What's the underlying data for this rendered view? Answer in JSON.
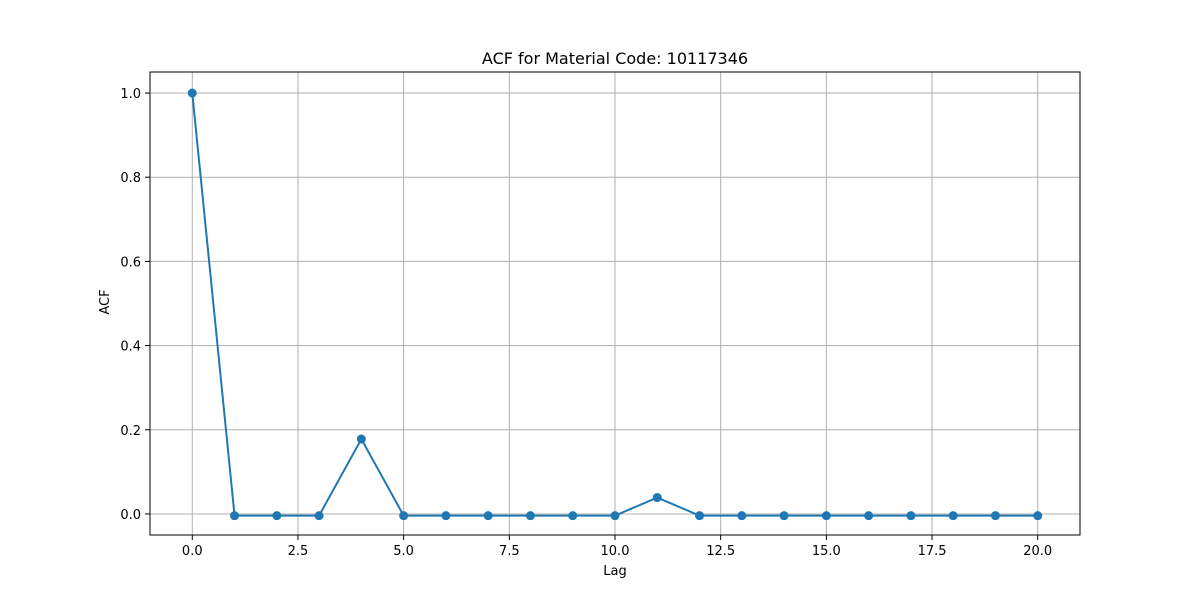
{
  "chart_data": {
    "type": "line",
    "title": "ACF for Material Code: 10117346",
    "xlabel": "Lag",
    "ylabel": "ACF",
    "x": [
      0,
      1,
      2,
      3,
      4,
      5,
      6,
      7,
      8,
      9,
      10,
      11,
      12,
      13,
      14,
      15,
      16,
      17,
      18,
      19,
      20
    ],
    "series": [
      {
        "values": [
          1.0,
          -0.004,
          -0.004,
          -0.004,
          0.178,
          -0.004,
          -0.004,
          -0.004,
          -0.004,
          -0.004,
          -0.004,
          0.039,
          -0.004,
          -0.004,
          -0.004,
          -0.004,
          -0.004,
          -0.004,
          -0.004,
          -0.004,
          -0.004
        ],
        "color": "#1f77b4",
        "marker": "circle"
      }
    ],
    "xlim": [
      -1.0,
      21.0
    ],
    "ylim": [
      -0.05,
      1.05
    ],
    "xticks": [
      0.0,
      2.5,
      5.0,
      7.5,
      10.0,
      12.5,
      15.0,
      17.5,
      20.0
    ],
    "xtick_labels": [
      "0.0",
      "2.5",
      "5.0",
      "7.5",
      "10.0",
      "12.5",
      "15.0",
      "17.5",
      "20.0"
    ],
    "yticks": [
      0.0,
      0.2,
      0.4,
      0.6,
      0.8,
      1.0
    ],
    "ytick_labels": [
      "0.0",
      "0.2",
      "0.4",
      "0.6",
      "0.8",
      "1.0"
    ],
    "grid": true
  }
}
